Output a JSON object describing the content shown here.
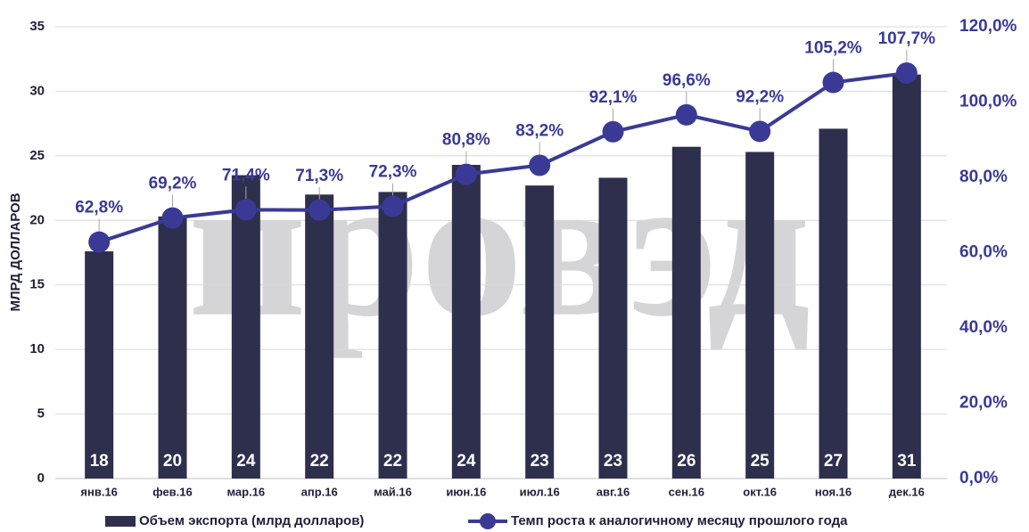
{
  "chart_data": {
    "type": "bar_line",
    "watermark": "провэд",
    "y_axis_label": "МЛРД ДОЛЛАРОВ",
    "categories": [
      "янв.16",
      "фев.16",
      "мар.16",
      "апр.16",
      "май.16",
      "июн.16",
      "июл.16",
      "авг.16",
      "сен.16",
      "окт.16",
      "ноя.16",
      "дек.16"
    ],
    "series": [
      {
        "name": "Объем экспорта (млрд долларов)",
        "type": "bar",
        "color": "#2e2f4d",
        "values": [
          17.6,
          20.3,
          23.5,
          22.0,
          22.2,
          24.3,
          22.7,
          23.3,
          25.7,
          25.3,
          27.1,
          31.3
        ],
        "value_labels": [
          "18",
          "20",
          "24",
          "22",
          "22",
          "24",
          "23",
          "23",
          "26",
          "25",
          "27",
          "31"
        ]
      },
      {
        "name": "Темп роста к аналогичному месяцу прошлого года",
        "type": "line",
        "axis": "y2",
        "color": "#3a3a96",
        "values": [
          62.8,
          69.2,
          71.4,
          71.3,
          72.3,
          80.8,
          83.2,
          92.1,
          96.6,
          92.2,
          105.2,
          107.7
        ],
        "value_labels": [
          "62,8%",
          "69,2%",
          "71,4%",
          "71,3%",
          "72,3%",
          "80,8%",
          "83,2%",
          "92,1%",
          "96,6%",
          "92,2%",
          "105,2%",
          "107,7%"
        ]
      }
    ],
    "ylim": [
      0,
      35
    ],
    "yticks": [
      0,
      5,
      10,
      15,
      20,
      25,
      30,
      35
    ],
    "y2lim": [
      0,
      120
    ],
    "y2ticks": [
      {
        "value": 0,
        "label": "0,0%"
      },
      {
        "value": 20,
        "label": "20,0%"
      },
      {
        "value": 40,
        "label": "40,0%"
      },
      {
        "value": 60,
        "label": "60,0%"
      },
      {
        "value": 80,
        "label": "80,0%"
      },
      {
        "value": 100,
        "label": "100,0%"
      },
      {
        "value": 120,
        "label": "120,0%"
      }
    ],
    "grid": true,
    "legend": "bottom"
  }
}
